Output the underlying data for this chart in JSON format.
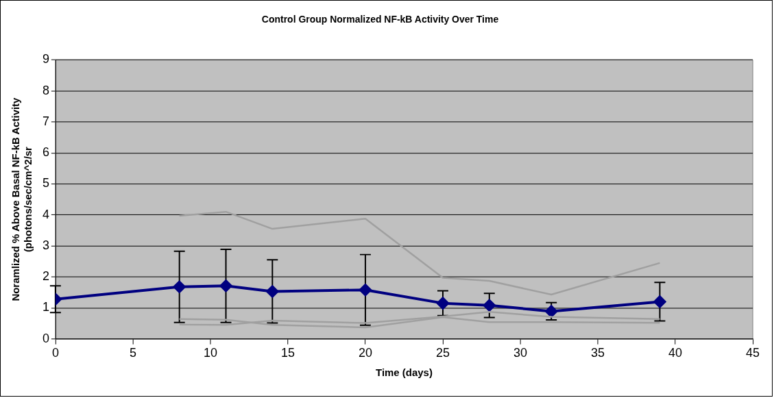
{
  "chart_data": {
    "type": "line",
    "title": "Control Group Normalized NF-kB Activity Over Time",
    "xlabel": "Time (days)",
    "ylabel": "Noramlized % Above Basal NF-kB Activity (photons/sec/cm^2/sr",
    "x": [
      0,
      8,
      11,
      14,
      20,
      25,
      28,
      32,
      39
    ],
    "series": [
      {
        "color": "#a0a0a0",
        "marker": "none",
        "values": [
          null,
          3.97,
          4.1,
          3.55,
          3.88,
          1.97,
          1.87,
          1.43,
          2.45
        ]
      },
      {
        "color": "#a0a0a0",
        "marker": "none",
        "values": [
          null,
          0.64,
          0.62,
          0.45,
          0.37,
          0.7,
          0.54,
          0.54,
          0.52
        ]
      },
      {
        "color": "#a0a0a0",
        "marker": "none",
        "values": [
          null,
          0.46,
          0.45,
          0.59,
          0.51,
          0.72,
          0.87,
          0.71,
          0.64
        ]
      },
      {
        "color": "#000080",
        "values": [
          1.28,
          1.68,
          1.71,
          1.53,
          1.58,
          1.15,
          1.08,
          0.89,
          1.2
        ],
        "errors": [
          0.43,
          1.15,
          1.18,
          1.02,
          1.14,
          0.4,
          0.39,
          0.28,
          0.62
        ]
      }
    ],
    "marker": "diamond",
    "line_style": "solid",
    "grid": "y",
    "legend": false,
    "xlim": [
      0,
      45
    ],
    "xticks": [
      0,
      5,
      10,
      15,
      20,
      25,
      30,
      35,
      40,
      45
    ],
    "ylim": [
      0,
      9
    ],
    "yticks": [
      0,
      1,
      2,
      3,
      4,
      5,
      6,
      7,
      8,
      9
    ]
  }
}
